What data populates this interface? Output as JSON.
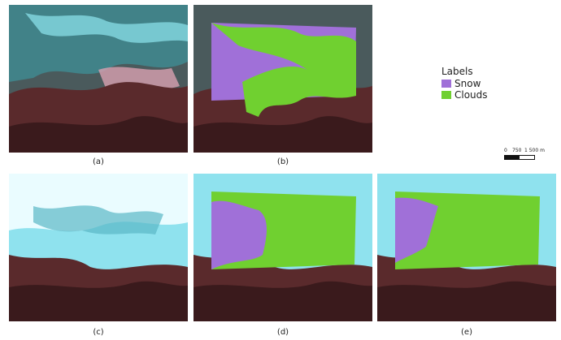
{
  "panels": [
    {
      "caption": "(a)",
      "scene": "first acquisition, false-color"
    },
    {
      "caption": "(b)",
      "scene": "first acquisition with labels"
    },
    {
      "caption": "(c)",
      "scene": "second acquisition, false-color"
    },
    {
      "caption": "(d)",
      "scene": "second acquisition with labels"
    },
    {
      "caption": "(e)",
      "scene": "second acquisition with predicted labels"
    }
  ],
  "legend": {
    "title": "Labels",
    "items": [
      {
        "label": "Snow",
        "color": "#a070d8"
      },
      {
        "label": "Clouds",
        "color": "#70d030"
      }
    ]
  },
  "scalebar": {
    "labels": [
      "0",
      "750",
      "1 500 m"
    ]
  },
  "colors": {
    "snow": "#a070d8",
    "clouds": "#70d030",
    "terrain": "#5a2a2c",
    "sky": "#8fe2ee"
  }
}
